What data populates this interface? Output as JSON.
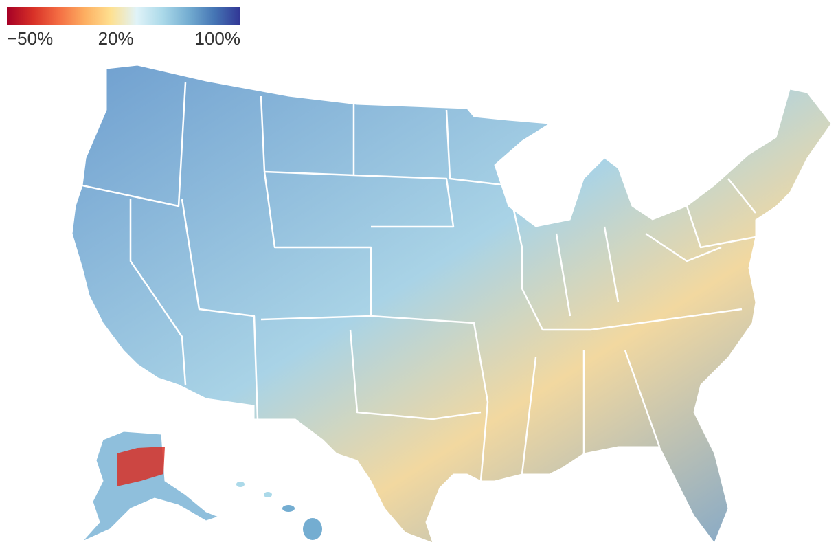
{
  "legend": {
    "colors": [
      "#a50026",
      "#d73027",
      "#f46d43",
      "#fdae61",
      "#fee090",
      "#e0f3f8",
      "#abd9e9",
      "#74add1",
      "#4575b4",
      "#313695"
    ],
    "range": [
      -50,
      100
    ],
    "ticks": [
      {
        "value": -50,
        "label": "−50%"
      },
      {
        "value": 20,
        "label": "20%"
      },
      {
        "value": 100,
        "label": "100%"
      }
    ]
  }
}
